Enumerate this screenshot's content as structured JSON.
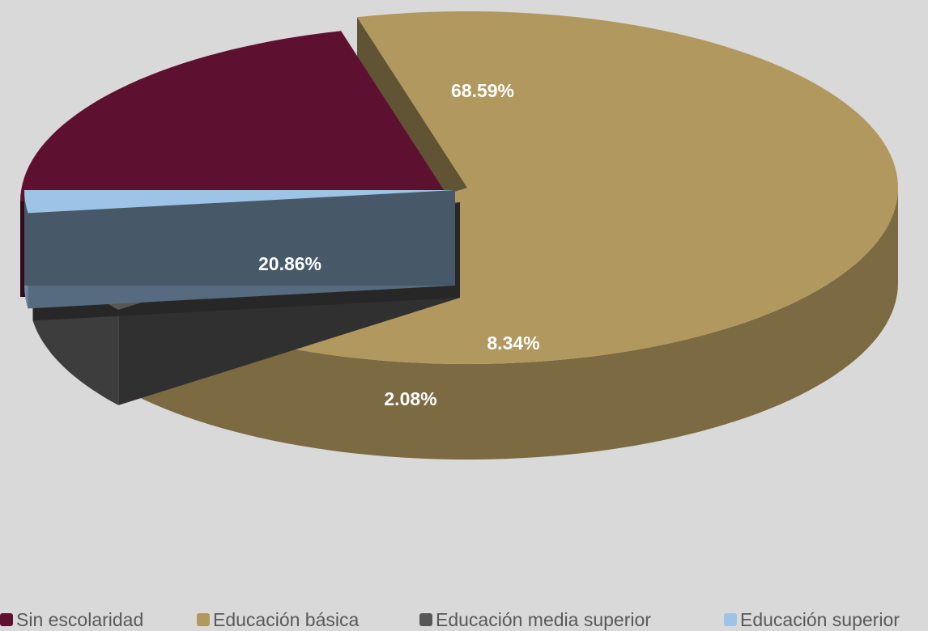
{
  "chart_data": {
    "type": "pie",
    "style": "3d-exploded",
    "unit": "%",
    "slices": [
      {
        "label": "Sin escolaridad",
        "value": 20.86,
        "display": "20.86%",
        "color": "#5e1030"
      },
      {
        "label": "Educación básica",
        "value": 68.59,
        "display": "68.59%",
        "color": "#b0985e"
      },
      {
        "label": "Educación media superior",
        "value": 8.34,
        "display": "8.34%",
        "color": "#575757"
      },
      {
        "label": "Educación superior",
        "value": 2.08,
        "display": "2.08%",
        "color": "#9dc3e6"
      }
    ],
    "legend_position": "bottom",
    "background": "#d9d9d9",
    "label_color": "#ffffff",
    "legend_text_color": "#595959"
  }
}
